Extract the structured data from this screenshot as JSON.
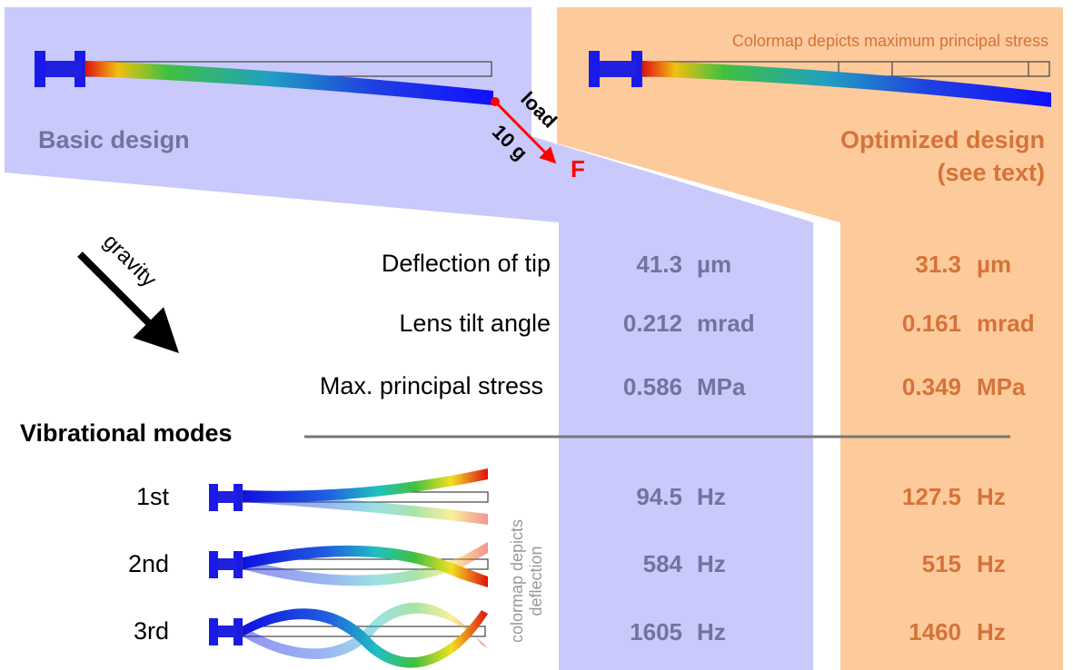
{
  "basic_design": {
    "title": "Basic design",
    "load_label": "load",
    "load_mass": "10 g",
    "force_label": "F"
  },
  "optimized_design": {
    "title_lines": [
      "Optimized design",
      "(see text)"
    ],
    "colormap_note": "Colormap depicts maximum principal stress"
  },
  "gravity_label": "gravity",
  "properties": [
    {
      "label": "Deflection of tip",
      "basic": 41.3,
      "optimized": 31.3,
      "unit": "µm"
    },
    {
      "label": "Lens tilt angle",
      "basic": 0.212,
      "optimized": 0.161,
      "unit": "mrad"
    },
    {
      "label": "Max. principal stress",
      "basic": 0.586,
      "optimized": 0.349,
      "unit": "MPa"
    }
  ],
  "vibrational_modes": {
    "title": "Vibrational  modes",
    "colormap_note_lines": [
      "colormap depicts",
      "deflection"
    ],
    "modes": [
      {
        "label": "1st",
        "basic": 94.5,
        "optimized": 127.5,
        "unit": "Hz"
      },
      {
        "label": "2nd",
        "basic": 584,
        "optimized": 515,
        "unit": "Hz"
      },
      {
        "label": "3rd",
        "basic": 1605,
        "optimized": 1460,
        "unit": "Hz"
      }
    ]
  }
}
